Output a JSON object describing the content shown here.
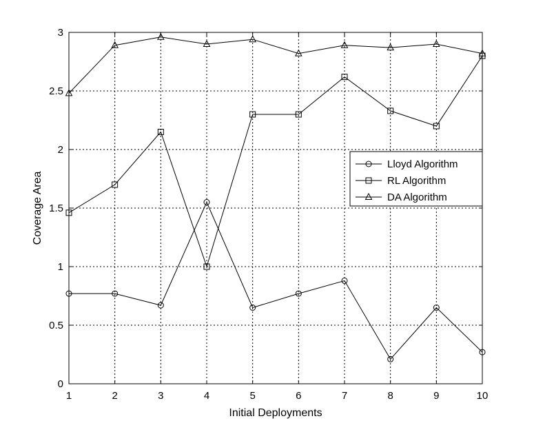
{
  "chart_data": {
    "type": "line",
    "title": "",
    "xlabel": "Initial Deployments",
    "ylabel": "Coverage Area",
    "xlim": [
      1,
      10
    ],
    "ylim": [
      0,
      3
    ],
    "xticks": [
      "1",
      "2",
      "3",
      "4",
      "5",
      "6",
      "7",
      "8",
      "9",
      "10"
    ],
    "yticks": [
      "0",
      "0.5",
      "1",
      "1.5",
      "2",
      "2.5",
      "3"
    ],
    "grid": true,
    "legend_position": "center-right",
    "x": [
      1,
      2,
      3,
      4,
      5,
      6,
      7,
      8,
      9,
      10
    ],
    "series": [
      {
        "name": "Lloyd Algorithm",
        "marker": "circle",
        "values": [
          0.77,
          0.77,
          0.67,
          1.55,
          0.65,
          0.77,
          0.88,
          0.21,
          0.65,
          0.27
        ]
      },
      {
        "name": "RL Algorithm",
        "marker": "square",
        "values": [
          1.46,
          1.7,
          2.15,
          1.0,
          2.3,
          2.3,
          2.62,
          2.33,
          2.2,
          2.8
        ]
      },
      {
        "name": "DA Algorithm",
        "marker": "triangle",
        "values": [
          2.48,
          2.89,
          2.96,
          2.9,
          2.94,
          2.82,
          2.89,
          2.87,
          2.9,
          2.82
        ]
      }
    ]
  }
}
